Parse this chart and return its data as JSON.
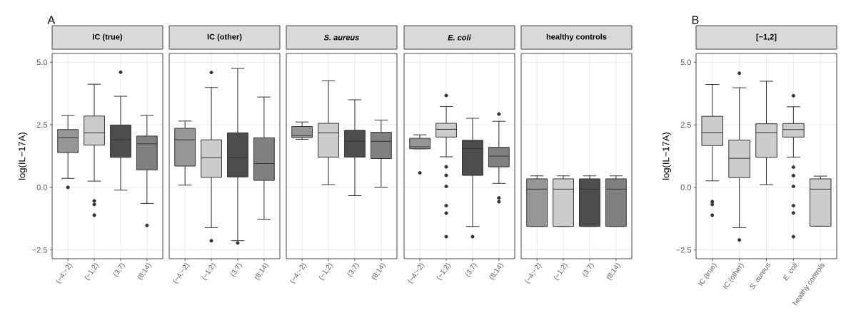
{
  "chart_data": [
    {
      "type": "box",
      "title": "IC (true)",
      "ylabel": "log(IL−17A)",
      "annotations": [
        "A"
      ],
      "categories": [
        "(−4;−2)",
        "(−1;2)",
        "(3;7)",
        "(8;14)"
      ],
      "colors": [
        "#969696",
        "#cccccc",
        "#4d4d4d",
        "#808080"
      ],
      "ylim": [
        -2.85,
        5.35
      ],
      "yticks": [
        {
          "value": -2.5,
          "label": "−2.5"
        },
        {
          "value": 0,
          "label": "0.0"
        },
        {
          "value": 2.5,
          "label": "2.5"
        },
        {
          "value": 5,
          "label": "5.0"
        }
      ],
      "grid": true,
      "boxes": [
        {
          "low": 0.36,
          "q1": 1.39,
          "median": 1.99,
          "q3": 2.31,
          "high": 2.87,
          "outliers": [
            0.0
          ]
        },
        {
          "low": 0.25,
          "q1": 1.69,
          "median": 2.18,
          "q3": 2.85,
          "high": 4.12,
          "outliers": [
            -0.54,
            -0.68,
            -1.11
          ]
        },
        {
          "low": -0.11,
          "q1": 1.2,
          "median": 1.9,
          "q3": 2.49,
          "high": 3.64,
          "outliers": [
            4.6
          ]
        },
        {
          "low": -0.64,
          "q1": 0.7,
          "median": 1.74,
          "q3": 2.05,
          "high": 2.87,
          "outliers": [
            -1.52
          ]
        }
      ]
    },
    {
      "type": "box",
      "title": "IC (other)",
      "categories": [
        "(−4;−2)",
        "(−1;2)",
        "(3;7)",
        "(8;14)"
      ],
      "colors": [
        "#969696",
        "#cccccc",
        "#4d4d4d",
        "#808080"
      ],
      "ylim": [
        -2.85,
        5.35
      ],
      "yticks": [
        {
          "value": -2.5,
          "label": null
        },
        {
          "value": 0,
          "label": null
        },
        {
          "value": 2.5,
          "label": null
        },
        {
          "value": 5,
          "label": null
        }
      ],
      "tick_labels": "x",
      "grid": true,
      "boxes": [
        {
          "low": 0.09,
          "q1": 0.85,
          "median": 1.9,
          "q3": 2.36,
          "high": 2.65
        },
        {
          "low": -1.61,
          "q1": 0.4,
          "median": 1.19,
          "q3": 1.9,
          "high": 3.99,
          "outliers": [
            4.59,
            -2.13
          ]
        },
        {
          "low": -2.13,
          "q1": 0.42,
          "median": 1.19,
          "q3": 2.18,
          "high": 4.75,
          "outliers": [
            -2.22
          ]
        },
        {
          "low": -1.27,
          "q1": 0.28,
          "median": 0.95,
          "q3": 1.98,
          "high": 3.61
        }
      ]
    },
    {
      "type": "box",
      "title": "*S. aureus*",
      "categories": [
        "(−4;−2)",
        "(−1;2)",
        "(3;7)",
        "(8;14)"
      ],
      "colors": [
        "#969696",
        "#cccccc",
        "#4d4d4d",
        "#808080"
      ],
      "ylim": [
        -2.85,
        5.35
      ],
      "yticks": [
        {
          "value": -2.5,
          "label": null
        },
        {
          "value": 0,
          "label": null
        },
        {
          "value": 2.5,
          "label": null
        },
        {
          "value": 5,
          "label": null
        }
      ],
      "tick_labels": "x",
      "grid": true,
      "boxes": [
        {
          "low": 1.92,
          "q1": 1.99,
          "median": 2.07,
          "q3": 2.43,
          "high": 2.61
        },
        {
          "low": 0.11,
          "q1": 1.21,
          "median": 2.18,
          "q3": 2.56,
          "high": 4.26
        },
        {
          "low": -0.33,
          "q1": 1.21,
          "median": 1.84,
          "q3": 2.28,
          "high": 3.5
        },
        {
          "low": 0.0,
          "q1": 1.15,
          "median": 1.84,
          "q3": 2.2,
          "high": 2.69
        }
      ]
    },
    {
      "type": "box",
      "title": "*E. coli*",
      "categories": [
        "(−4;−2)",
        "(−1;2)",
        "(3;7)",
        "(8;14)"
      ],
      "colors": [
        "#969696",
        "#cccccc",
        "#4d4d4d",
        "#808080"
      ],
      "ylim": [
        -2.85,
        5.35
      ],
      "yticks": [
        {
          "value": -2.5,
          "label": null
        },
        {
          "value": 0,
          "label": null
        },
        {
          "value": 2.5,
          "label": null
        },
        {
          "value": 5,
          "label": null
        }
      ],
      "tick_labels": "x",
      "grid": true,
      "boxes": [
        {
          "low": 1.54,
          "q1": 1.54,
          "median": 1.62,
          "q3": 1.96,
          "high": 2.1,
          "outliers": [
            0.58
          ]
        },
        {
          "low": 1.22,
          "q1": 2.01,
          "median": 2.32,
          "q3": 2.56,
          "high": 3.23,
          "outliers": [
            3.67,
            0.82,
            0.48,
            0.04,
            -0.73,
            -1.03,
            -1.97
          ]
        },
        {
          "low": -1.56,
          "q1": 0.48,
          "median": 1.55,
          "q3": 1.88,
          "high": 2.76,
          "outliers": [
            -1.97
          ]
        },
        {
          "low": 0.16,
          "q1": 0.82,
          "median": 1.25,
          "q3": 1.6,
          "high": 2.64,
          "outliers": [
            2.93,
            -0.42,
            -0.57
          ]
        }
      ]
    },
    {
      "type": "box",
      "title": "healthy controls",
      "categories": [
        "(−4;−2)",
        "(−1;2)",
        "(3;7)",
        "(8;14)"
      ],
      "colors": [
        "#969696",
        "#cccccc",
        "#4d4d4d",
        "#808080"
      ],
      "ylim": [
        -2.85,
        5.35
      ],
      "yticks": [
        {
          "value": -2.5,
          "label": null
        },
        {
          "value": 0,
          "label": null
        },
        {
          "value": 2.5,
          "label": null
        },
        {
          "value": 5,
          "label": null
        }
      ],
      "tick_labels": "x",
      "grid": true,
      "boxes": [
        {
          "low": -1.56,
          "q1": -1.56,
          "median": -0.07,
          "q3": 0.34,
          "high": 0.46
        },
        {
          "low": -1.56,
          "q1": -1.56,
          "median": -0.07,
          "q3": 0.34,
          "high": 0.46
        },
        {
          "low": -1.56,
          "q1": -1.56,
          "median": -0.07,
          "q3": 0.34,
          "high": 0.46
        },
        {
          "low": -1.56,
          "q1": -1.56,
          "median": -0.07,
          "q3": 0.34,
          "high": 0.46
        }
      ]
    },
    {
      "type": "box",
      "title": "[−1,2]",
      "ylabel": "log(IL−17A)",
      "annotations": [
        "B"
      ],
      "categories": [
        "IC (true)",
        "IC (other)",
        "*S. aureus*",
        "*E. coli*",
        "healthy controls"
      ],
      "colors": [
        "#cccccc",
        "#cccccc",
        "#cccccc",
        "#cccccc",
        "#cccccc"
      ],
      "ylim": [
        -2.85,
        5.35
      ],
      "yticks": [
        {
          "value": -2.5,
          "label": "−2.5"
        },
        {
          "value": 0,
          "label": "0.0"
        },
        {
          "value": 2.5,
          "label": "2.5"
        },
        {
          "value": 5,
          "label": "5.0"
        }
      ],
      "grid": true,
      "boxes": [
        {
          "low": 0.26,
          "q1": 1.67,
          "median": 2.19,
          "q3": 2.84,
          "high": 4.11,
          "outliers": [
            -0.57,
            -0.68,
            -1.11
          ]
        },
        {
          "low": -1.61,
          "q1": 0.39,
          "median": 1.16,
          "q3": 1.89,
          "high": 3.98,
          "outliers": [
            4.56,
            -2.1
          ]
        },
        {
          "low": 0.11,
          "q1": 1.2,
          "median": 2.19,
          "q3": 2.54,
          "high": 4.24
        },
        {
          "low": 1.21,
          "q1": 2.01,
          "median": 2.31,
          "q3": 2.55,
          "high": 3.22,
          "outliers": [
            3.66,
            0.81,
            0.47,
            0.04,
            -0.73,
            -1.02,
            -1.97
          ]
        },
        {
          "low": -1.55,
          "q1": -1.55,
          "median": -0.07,
          "q3": 0.34,
          "high": 0.45
        }
      ]
    }
  ]
}
